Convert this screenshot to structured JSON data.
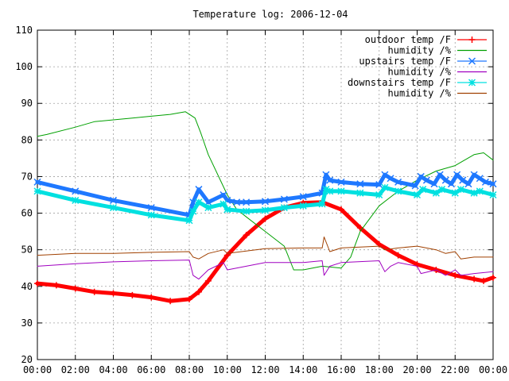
{
  "chart_data": {
    "type": "line",
    "title": "Temperature log: 2006-12-04",
    "xlabel": "",
    "ylabel": "",
    "x_unit": "hours",
    "xlim": [
      0,
      24
    ],
    "ylim": [
      20,
      110
    ],
    "x_ticks": [
      {
        "v": 0,
        "label": "00:00"
      },
      {
        "v": 2,
        "label": "02:00"
      },
      {
        "v": 4,
        "label": "04:00"
      },
      {
        "v": 6,
        "label": "06:00"
      },
      {
        "v": 8,
        "label": "08:00"
      },
      {
        "v": 10,
        "label": "10:00"
      },
      {
        "v": 12,
        "label": "12:00"
      },
      {
        "v": 14,
        "label": "14:00"
      },
      {
        "v": 16,
        "label": "16:00"
      },
      {
        "v": 18,
        "label": "18:00"
      },
      {
        "v": 20,
        "label": "20:00"
      },
      {
        "v": 22,
        "label": "22:00"
      },
      {
        "v": 24,
        "label": "00:00"
      }
    ],
    "y_ticks": [
      {
        "v": 20,
        "label": "20"
      },
      {
        "v": 30,
        "label": "30"
      },
      {
        "v": 40,
        "label": "40"
      },
      {
        "v": 50,
        "label": "50"
      },
      {
        "v": 60,
        "label": "60"
      },
      {
        "v": 70,
        "label": "70"
      },
      {
        "v": 80,
        "label": "80"
      },
      {
        "v": 90,
        "label": "90"
      },
      {
        "v": 100,
        "label": "100"
      },
      {
        "v": 110,
        "label": "110"
      }
    ],
    "grid": true,
    "legend_position": "top-right",
    "series": [
      {
        "name": "outdoor temp /F",
        "color": "#ff0000",
        "line_width": 5,
        "marker": "plus",
        "x": [
          0,
          1,
          2,
          3,
          4,
          5,
          6,
          7,
          8,
          8.5,
          9,
          10,
          11,
          12,
          13,
          14,
          15,
          16,
          17,
          18,
          19,
          20,
          21,
          22,
          23,
          23.5,
          24
        ],
        "y": [
          40.8,
          40.3,
          39.4,
          38.5,
          38.1,
          37.6,
          37.0,
          36.0,
          36.5,
          38.5,
          41.5,
          48.5,
          54.0,
          58.5,
          61.5,
          62.8,
          63.0,
          61.0,
          56.0,
          51.5,
          48.5,
          46.0,
          44.5,
          43.0,
          42.0,
          41.5,
          42.4
        ]
      },
      {
        "name": "humidity /%",
        "color": "#00a000",
        "line_width": 1,
        "marker": "none",
        "x": [
          0,
          0.5,
          2,
          3,
          4,
          5,
          6,
          7,
          7.8,
          8.3,
          8.6,
          9,
          10,
          10.5,
          11,
          12,
          13,
          13.5,
          14,
          15,
          16,
          16.5,
          17,
          18,
          19,
          20,
          21,
          22,
          23,
          23.5,
          24
        ],
        "y": [
          81.0,
          81.5,
          83.5,
          85.0,
          85.5,
          86.0,
          86.5,
          87.0,
          87.7,
          86.0,
          82.0,
          76.0,
          65.0,
          61.0,
          59.0,
          55.0,
          51.0,
          44.5,
          44.5,
          45.5,
          45.0,
          48.0,
          55.0,
          62.0,
          66.0,
          69.0,
          71.5,
          73.0,
          76.0,
          76.5,
          74.5
        ]
      },
      {
        "name": "upstairs temp /F",
        "color": "#1e78ff",
        "line_width": 5,
        "marker": "x",
        "x": [
          0,
          2,
          4,
          6,
          8,
          8.2,
          8.5,
          9,
          9.8,
          10,
          10.5,
          11,
          12,
          13,
          14,
          15,
          15.2,
          15.4,
          16,
          17,
          18,
          18.3,
          18.6,
          19,
          19.9,
          20.2,
          20.5,
          20.9,
          21.2,
          21.5,
          21.8,
          22.1,
          22.4,
          22.7,
          23.0,
          23.3,
          23.6,
          24
        ],
        "y": [
          68.5,
          66.0,
          63.5,
          61.5,
          59.5,
          63.0,
          66.5,
          63.0,
          65.0,
          63.5,
          63.0,
          63.0,
          63.2,
          63.8,
          64.5,
          65.5,
          70.5,
          69.0,
          68.5,
          68.0,
          67.8,
          70.5,
          69.5,
          68.5,
          67.5,
          70.0,
          69.0,
          68.0,
          70.5,
          69.0,
          68.0,
          70.5,
          69.0,
          68.0,
          70.5,
          69.5,
          68.5,
          68.0
        ]
      },
      {
        "name": "humidity /%",
        "color": "#a000c0",
        "line_width": 1,
        "marker": "none",
        "x": [
          0,
          2,
          4,
          6,
          8,
          8.2,
          8.5,
          9,
          9.8,
          10,
          12,
          14,
          15,
          15.1,
          15.4,
          16,
          18,
          18.3,
          18.6,
          19,
          20,
          20.2,
          21,
          21.5,
          22,
          22.3,
          23,
          24
        ],
        "y": [
          45.5,
          46.2,
          46.7,
          47.0,
          47.2,
          43.0,
          42.0,
          44.5,
          46.5,
          44.5,
          46.5,
          46.5,
          47.0,
          43.0,
          45.5,
          46.5,
          47.0,
          44.0,
          45.5,
          46.5,
          45.5,
          43.5,
          44.5,
          43.0,
          44.5,
          43.0,
          43.5,
          44.0
        ]
      },
      {
        "name": "downstairs temp /F",
        "color": "#00e0e0",
        "line_width": 5,
        "marker": "star",
        "x": [
          0,
          2,
          4,
          6,
          8,
          8.2,
          8.5,
          9,
          9.8,
          10,
          11,
          12,
          13,
          14,
          15,
          15.2,
          15.4,
          16,
          17,
          18,
          18.3,
          19,
          20,
          20.3,
          21,
          21.3,
          22,
          22.3,
          23,
          23.3,
          24
        ],
        "y": [
          66.0,
          63.5,
          61.5,
          59.5,
          58.0,
          60.5,
          63.0,
          61.5,
          62.5,
          61.0,
          60.5,
          60.8,
          61.5,
          62.0,
          62.5,
          66.5,
          66.0,
          66.0,
          65.5,
          65.0,
          67.0,
          66.0,
          65.0,
          66.5,
          65.5,
          66.5,
          65.5,
          66.5,
          65.5,
          66.0,
          65.0
        ]
      },
      {
        "name": "humidity /%",
        "color": "#a04000",
        "line_width": 1,
        "marker": "none",
        "x": [
          0,
          2,
          4,
          6,
          8,
          8.2,
          8.5,
          9,
          9.8,
          10,
          12,
          14,
          15,
          15.1,
          15.4,
          16,
          18,
          18.3,
          19,
          20,
          21,
          21.5,
          22,
          22.3,
          23,
          24
        ],
        "y": [
          48.5,
          49.0,
          49.0,
          49.3,
          49.5,
          48.0,
          47.5,
          49.0,
          50.0,
          49.0,
          50.3,
          50.5,
          50.5,
          53.5,
          49.5,
          50.5,
          51.0,
          50.0,
          50.5,
          51.0,
          50.0,
          49.0,
          49.5,
          47.5,
          48.0,
          48.0
        ]
      }
    ]
  }
}
